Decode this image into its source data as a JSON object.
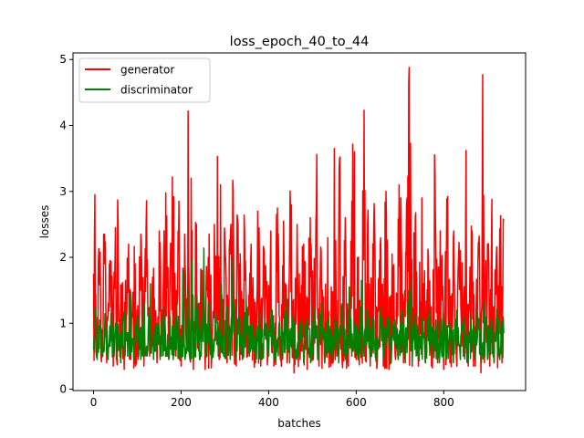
{
  "chart_data": {
    "type": "line",
    "title": "loss_epoch_40_to_44",
    "xlabel": "batches",
    "ylabel": "losses",
    "xlim": [
      -47,
      987
    ],
    "ylim": [
      -0.02,
      5.1
    ],
    "xticks": [
      0,
      200,
      400,
      600,
      800
    ],
    "yticks": [
      0,
      1,
      2,
      3,
      4,
      5
    ],
    "grid": false,
    "legend": "top-left",
    "n_points": 938,
    "series": [
      {
        "name": "generator",
        "color": "#ff0000",
        "points": [
          [
            0,
            1.75
          ],
          [
            3,
            2.95
          ],
          [
            6,
            0.55
          ],
          [
            10,
            0.95
          ],
          [
            15,
            2.08
          ],
          [
            20,
            0.6
          ],
          [
            25,
            2.35
          ],
          [
            30,
            0.4
          ],
          [
            38,
            1.95
          ],
          [
            45,
            0.35
          ],
          [
            50,
            2.45
          ],
          [
            55,
            2.87
          ],
          [
            60,
            0.5
          ],
          [
            65,
            1.55
          ],
          [
            70,
            0.3
          ],
          [
            80,
            2.2
          ],
          [
            85,
            0.45
          ],
          [
            95,
            1.9
          ],
          [
            100,
            0.5
          ],
          [
            108,
            2.35
          ],
          [
            115,
            0.35
          ],
          [
            120,
            2.45
          ],
          [
            128,
            0.5
          ],
          [
            135,
            1.7
          ],
          [
            145,
            0.4
          ],
          [
            150,
            2.4
          ],
          [
            155,
            0.5
          ],
          [
            165,
            2.98
          ],
          [
            172,
            0.45
          ],
          [
            180,
            3.22
          ],
          [
            188,
            0.5
          ],
          [
            195,
            2.85
          ],
          [
            200,
            0.35
          ],
          [
            208,
            2.35
          ],
          [
            212,
            0.6
          ],
          [
            216,
            4.22
          ],
          [
            219,
            0.5
          ],
          [
            223,
            3.2
          ],
          [
            228,
            0.3
          ],
          [
            235,
            2.5
          ],
          [
            242,
            0.45
          ],
          [
            248,
            1.8
          ],
          [
            255,
            0.3
          ],
          [
            262,
            2.0
          ],
          [
            270,
            0.5
          ],
          [
            276,
            2.5
          ],
          [
            283,
            3.53
          ],
          [
            287,
            0.45
          ],
          [
            290,
            3.1
          ],
          [
            295,
            0.6
          ],
          [
            300,
            2.3
          ],
          [
            305,
            0.4
          ],
          [
            312,
            2.05
          ],
          [
            318,
            3.17
          ],
          [
            322,
            0.4
          ],
          [
            330,
            2.5
          ],
          [
            340,
            0.45
          ],
          [
            345,
            2.4
          ],
          [
            352,
            0.5
          ],
          [
            360,
            2.2
          ],
          [
            368,
            0.4
          ],
          [
            375,
            2.7
          ],
          [
            382,
            0.35
          ],
          [
            390,
            2.1
          ],
          [
            398,
            0.5
          ],
          [
            405,
            2.4
          ],
          [
            412,
            0.35
          ],
          [
            420,
            2.75
          ],
          [
            428,
            0.5
          ],
          [
            435,
            2.0
          ],
          [
            442,
            0.4
          ],
          [
            450,
            2.7
          ],
          [
            458,
            0.25
          ],
          [
            465,
            2.5
          ],
          [
            472,
            0.45
          ],
          [
            480,
            2.2
          ],
          [
            488,
            0.3
          ],
          [
            495,
            2.6
          ],
          [
            502,
            0.45
          ],
          [
            510,
            3.56
          ],
          [
            515,
            0.35
          ],
          [
            520,
            2.1
          ],
          [
            528,
            0.4
          ],
          [
            535,
            2.3
          ],
          [
            542,
            0.35
          ],
          [
            550,
            3.65
          ],
          [
            556,
            0.5
          ],
          [
            562,
            3.5
          ],
          [
            568,
            0.4
          ],
          [
            575,
            2.6
          ],
          [
            582,
            0.35
          ],
          [
            590,
            2.85
          ],
          [
            596,
            3.6
          ],
          [
            600,
            0.45
          ],
          [
            605,
            2.0
          ],
          [
            612,
            0.5
          ],
          [
            618,
            4.23
          ],
          [
            622,
            0.6
          ],
          [
            626,
            2.5
          ],
          [
            632,
            0.35
          ],
          [
            640,
            2.4
          ],
          [
            648,
            0.4
          ],
          [
            655,
            2.2
          ],
          [
            662,
            0.35
          ],
          [
            668,
            3.0
          ],
          [
            675,
            0.3
          ],
          [
            682,
            2.05
          ],
          [
            690,
            0.45
          ],
          [
            696,
            2.58
          ],
          [
            702,
            2.9
          ],
          [
            708,
            0.4
          ],
          [
            715,
            2.8
          ],
          [
            721,
            4.88
          ],
          [
            724,
            3.73
          ],
          [
            728,
            0.35
          ],
          [
            735,
            2.6
          ],
          [
            742,
            0.35
          ],
          [
            750,
            2.9
          ],
          [
            758,
            0.4
          ],
          [
            765,
            2.0
          ],
          [
            772,
            0.35
          ],
          [
            780,
            3.26
          ],
          [
            786,
            0.4
          ],
          [
            792,
            2.4
          ],
          [
            800,
            0.3
          ],
          [
            808,
            2.75
          ],
          [
            815,
            0.4
          ],
          [
            822,
            2.3
          ],
          [
            830,
            0.35
          ],
          [
            838,
            2.1
          ],
          [
            845,
            0.5
          ],
          [
            851,
            3.62
          ],
          [
            856,
            0.35
          ],
          [
            865,
            2.4
          ],
          [
            872,
            0.35
          ],
          [
            880,
            2.2
          ],
          [
            885,
            0.25
          ],
          [
            889,
            4.77
          ],
          [
            893,
            0.4
          ],
          [
            900,
            2.2
          ],
          [
            905,
            0.35
          ],
          [
            910,
            2.88
          ],
          [
            915,
            0.4
          ],
          [
            920,
            2.0
          ],
          [
            925,
            0.5
          ],
          [
            930,
            2.63
          ],
          [
            933,
            0.4
          ],
          [
            937,
            2.55
          ]
        ]
      },
      {
        "name": "discriminator",
        "color": "#008000",
        "points": [
          [
            0,
            0.6
          ],
          [
            4,
            1.22
          ],
          [
            8,
            0.45
          ],
          [
            14,
            1.05
          ],
          [
            20,
            0.5
          ],
          [
            27,
            0.98
          ],
          [
            33,
            0.45
          ],
          [
            40,
            1.15
          ],
          [
            47,
            0.5
          ],
          [
            55,
            1.0
          ],
          [
            62,
            0.4
          ],
          [
            70,
            1.18
          ],
          [
            78,
            0.5
          ],
          [
            85,
            1.47
          ],
          [
            92,
            0.45
          ],
          [
            100,
            1.05
          ],
          [
            108,
            0.45
          ],
          [
            115,
            1.3
          ],
          [
            122,
            0.5
          ],
          [
            130,
            1.6
          ],
          [
            137,
            0.45
          ],
          [
            145,
            1.0
          ],
          [
            152,
            0.45
          ],
          [
            160,
            1.25
          ],
          [
            168,
            0.5
          ],
          [
            175,
            1.05
          ],
          [
            182,
            0.45
          ],
          [
            190,
            1.35
          ],
          [
            198,
            0.5
          ],
          [
            205,
            1.8
          ],
          [
            210,
            0.5
          ],
          [
            215,
            1.55
          ],
          [
            220,
            0.45
          ],
          [
            225,
            1.95
          ],
          [
            231,
            0.5
          ],
          [
            236,
            1.45
          ],
          [
            243,
            0.45
          ],
          [
            252,
            2.14
          ],
          [
            256,
            0.55
          ],
          [
            262,
            1.3
          ],
          [
            270,
            0.45
          ],
          [
            278,
            1.15
          ],
          [
            285,
            0.5
          ],
          [
            292,
            1.6
          ],
          [
            298,
            0.5
          ],
          [
            305,
            1.25
          ],
          [
            312,
            0.45
          ],
          [
            318,
            1.95
          ],
          [
            324,
            0.45
          ],
          [
            332,
            1.1
          ],
          [
            340,
            0.5
          ],
          [
            348,
            1.35
          ],
          [
            356,
            0.5
          ],
          [
            362,
            1.0
          ],
          [
            370,
            0.4
          ],
          [
            378,
            1.15
          ],
          [
            385,
            0.45
          ],
          [
            392,
            1.05
          ],
          [
            400,
            0.5
          ],
          [
            408,
            1.2
          ],
          [
            416,
            0.4
          ],
          [
            424,
            1.0
          ],
          [
            432,
            0.45
          ],
          [
            440,
            1.45
          ],
          [
            448,
            0.4
          ],
          [
            456,
            1.1
          ],
          [
            464,
            0.45
          ],
          [
            472,
            1.0
          ],
          [
            480,
            0.4
          ],
          [
            488,
            1.05
          ],
          [
            496,
            0.4
          ],
          [
            504,
            1.15
          ],
          [
            512,
            0.45
          ],
          [
            520,
            1.3
          ],
          [
            528,
            0.4
          ],
          [
            536,
            1.0
          ],
          [
            544,
            0.45
          ],
          [
            552,
            1.1
          ],
          [
            560,
            0.4
          ],
          [
            568,
            1.3
          ],
          [
            576,
            0.45
          ],
          [
            584,
            1.55
          ],
          [
            590,
            0.5
          ],
          [
            597,
            1.0
          ],
          [
            605,
            0.45
          ],
          [
            612,
            1.65
          ],
          [
            618,
            0.5
          ],
          [
            625,
            1.15
          ],
          [
            632,
            0.45
          ],
          [
            640,
            1.05
          ],
          [
            648,
            0.4
          ],
          [
            656,
            1.25
          ],
          [
            664,
            0.45
          ],
          [
            672,
            1.1
          ],
          [
            680,
            0.4
          ],
          [
            688,
            1.05
          ],
          [
            696,
            0.45
          ],
          [
            704,
            1.1
          ],
          [
            712,
            0.4
          ],
          [
            720,
            1.5
          ],
          [
            724,
            1.62
          ],
          [
            728,
            0.4
          ],
          [
            735,
            1.1
          ],
          [
            742,
            0.45
          ],
          [
            750,
            1.05
          ],
          [
            758,
            0.4
          ],
          [
            766,
            1.2
          ],
          [
            774,
            0.45
          ],
          [
            782,
            1.05
          ],
          [
            790,
            0.4
          ],
          [
            798,
            1.15
          ],
          [
            806,
            0.45
          ],
          [
            814,
            1.0
          ],
          [
            822,
            0.4
          ],
          [
            830,
            1.2
          ],
          [
            838,
            0.45
          ],
          [
            846,
            1.05
          ],
          [
            854,
            0.4
          ],
          [
            862,
            1.1
          ],
          [
            870,
            0.45
          ],
          [
            878,
            1.05
          ],
          [
            886,
            0.4
          ],
          [
            893,
            1.3
          ],
          [
            900,
            0.45
          ],
          [
            908,
            1.05
          ],
          [
            915,
            0.4
          ],
          [
            922,
            1.2
          ],
          [
            928,
            0.45
          ],
          [
            933,
            1.0
          ],
          [
            937,
            0.85
          ]
        ]
      }
    ]
  }
}
